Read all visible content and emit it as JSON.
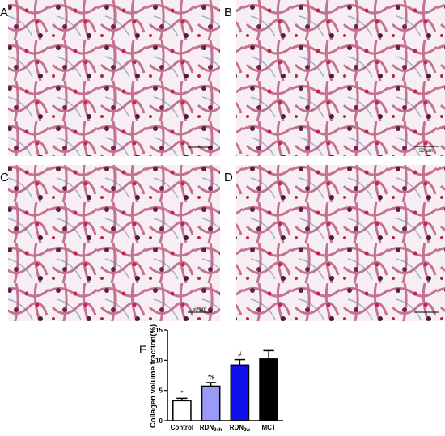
{
  "panels": [
    {
      "label": "A"
    },
    {
      "label": "B",
      "scale_bar": "50 μm"
    },
    {
      "label": "C",
      "scale_bar": "50 μm"
    },
    {
      "label": "D"
    }
  ],
  "chart_data": {
    "type": "bar",
    "panel_label": "E",
    "ylabel": "Collagen volume fraction(%)",
    "categories": [
      "Control",
      "RDN",
      "RDN",
      "MCT"
    ],
    "category_subscripts": [
      null,
      "24h",
      "2w",
      null
    ],
    "values": [
      3.3,
      5.7,
      9.2,
      10.2
    ],
    "errors": [
      0.4,
      0.6,
      0.9,
      1.4
    ],
    "value_annotations": [
      "*",
      "*$",
      "#",
      null
    ],
    "colors": [
      "#ffffff",
      "#9a9af7",
      "#1010ee",
      "#000000"
    ],
    "ylim": [
      0,
      15
    ],
    "yticks": [
      0,
      5,
      10,
      15
    ]
  }
}
